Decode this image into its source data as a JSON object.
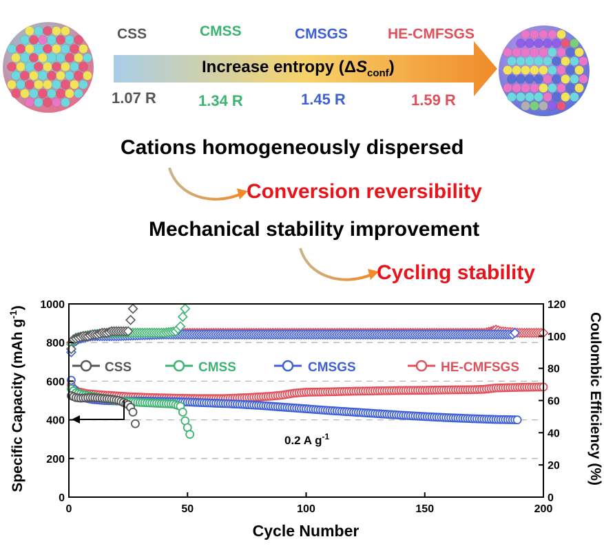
{
  "header": {
    "materials": [
      {
        "name": "CSS",
        "entropy": "1.07 R",
        "color": "#555555"
      },
      {
        "name": "CMSS",
        "entropy": "1.34 R",
        "color": "#3cb371"
      },
      {
        "name": "CMSGS",
        "entropy": "1.45 R",
        "color": "#3f5fd6"
      },
      {
        "name": "HE-CMFSGS",
        "entropy": "1.59 R",
        "color": "#e0505a"
      }
    ],
    "arrow_text": "Increase entropy (",
    "arrow_delta": "Δ",
    "arrow_s": "S",
    "arrow_sub": "conf",
    "arrow_close": ")",
    "arrow_colors": [
      "#a9cde8",
      "#f7d36a",
      "#f08a2a"
    ]
  },
  "statements": {
    "line1": "Cations homogeneously dispersed",
    "result1": "Conversion reversibility",
    "line2": "Mechanical stability improvement",
    "result2": "Cycling stability",
    "result_color": "#e8141c"
  },
  "chart_data": {
    "type": "scatter",
    "xlabel": "Cycle Number",
    "ylabel_left": "Specific Capacity (mAh g",
    "ylabel_left_sup": "-1",
    "ylabel_left_close": ")",
    "ylabel_right": "Coulombic Efficiency (%)",
    "xlim": [
      0,
      200
    ],
    "ylim_left": [
      0,
      1000
    ],
    "ylim_right": [
      0,
      120
    ],
    "xticks": [
      "0",
      "50",
      "100",
      "150",
      "200"
    ],
    "yticks_left": [
      "0",
      "200",
      "400",
      "600",
      "800",
      "1000"
    ],
    "yticks_right": [
      "0",
      "20",
      "40",
      "60",
      "80",
      "100",
      "120"
    ],
    "gridlines_left": [
      200,
      400,
      600,
      800
    ],
    "annotation": "0.2 A g",
    "annotation_sup": "-1",
    "legend": [
      "CSS",
      "CMSS",
      "CMSGS",
      "HE-CMFSGS"
    ],
    "series": [
      {
        "name": "CSS",
        "color": "#555555",
        "capacity": [
          [
            1,
            525
          ],
          [
            3,
            515
          ],
          [
            5,
            512
          ],
          [
            7,
            514
          ],
          [
            9,
            515
          ],
          [
            11,
            514
          ],
          [
            13,
            512
          ],
          [
            15,
            510
          ],
          [
            17,
            508
          ],
          [
            19,
            505
          ],
          [
            21,
            500
          ],
          [
            23,
            490
          ],
          [
            25,
            478
          ],
          [
            26,
            465
          ],
          [
            27,
            440
          ],
          [
            28,
            380
          ]
        ],
        "ce": [
          [
            1,
            92
          ],
          [
            2,
            98
          ],
          [
            4,
            99
          ],
          [
            6,
            100
          ],
          [
            8,
            100
          ],
          [
            10,
            101
          ],
          [
            12,
            101
          ],
          [
            14,
            102
          ],
          [
            16,
            102
          ],
          [
            18,
            103
          ],
          [
            20,
            103
          ],
          [
            22,
            103
          ],
          [
            24,
            103
          ],
          [
            25,
            103
          ],
          [
            26,
            110
          ],
          [
            27,
            117
          ]
        ]
      },
      {
        "name": "CMSS",
        "color": "#3cb371",
        "capacity": [
          [
            1,
            560
          ],
          [
            3,
            540
          ],
          [
            6,
            530
          ],
          [
            10,
            520
          ],
          [
            15,
            510
          ],
          [
            20,
            500
          ],
          [
            25,
            495
          ],
          [
            30,
            490
          ],
          [
            35,
            487
          ],
          [
            40,
            484
          ],
          [
            44,
            482
          ],
          [
            47,
            470
          ],
          [
            48,
            440
          ],
          [
            49,
            395
          ],
          [
            50,
            360
          ],
          [
            51,
            325
          ]
        ],
        "ce": [
          [
            1,
            95
          ],
          [
            3,
            99
          ],
          [
            6,
            100
          ],
          [
            10,
            101
          ],
          [
            15,
            102
          ],
          [
            20,
            102
          ],
          [
            25,
            102
          ],
          [
            30,
            102
          ],
          [
            35,
            102
          ],
          [
            40,
            102
          ],
          [
            45,
            103
          ],
          [
            47,
            106
          ],
          [
            48,
            112
          ],
          [
            49,
            117
          ]
        ]
      },
      {
        "name": "CMSGS",
        "color": "#3f5fd6",
        "capacity": [
          [
            1,
            605
          ],
          [
            2,
            560
          ],
          [
            4,
            530
          ],
          [
            6,
            515
          ],
          [
            10,
            505
          ],
          [
            15,
            500
          ],
          [
            20,
            498
          ],
          [
            30,
            497
          ],
          [
            40,
            495
          ],
          [
            50,
            492
          ],
          [
            60,
            487
          ],
          [
            70,
            482
          ],
          [
            80,
            475
          ],
          [
            90,
            466
          ],
          [
            100,
            457
          ],
          [
            110,
            448
          ],
          [
            120,
            440
          ],
          [
            130,
            432
          ],
          [
            140,
            424
          ],
          [
            150,
            417
          ],
          [
            160,
            411
          ],
          [
            170,
            406
          ],
          [
            180,
            402
          ],
          [
            189,
            400
          ]
        ],
        "ce": [
          [
            1,
            90
          ],
          [
            2,
            96
          ],
          [
            4,
            98
          ],
          [
            6,
            99
          ],
          [
            10,
            100
          ],
          [
            20,
            100
          ],
          [
            40,
            101
          ],
          [
            60,
            101
          ],
          [
            80,
            101
          ],
          [
            100,
            101
          ],
          [
            120,
            101
          ],
          [
            140,
            101
          ],
          [
            160,
            101
          ],
          [
            180,
            101
          ],
          [
            187,
            101
          ],
          [
            188,
            102
          ]
        ]
      },
      {
        "name": "HE-CMFSGS",
        "color": "#e0505a",
        "capacity": [
          [
            1,
            580
          ],
          [
            2,
            560
          ],
          [
            4,
            545
          ],
          [
            8,
            535
          ],
          [
            15,
            528
          ],
          [
            25,
            520
          ],
          [
            35,
            515
          ],
          [
            45,
            512
          ],
          [
            55,
            510
          ],
          [
            65,
            510
          ],
          [
            75,
            515
          ],
          [
            85,
            522
          ],
          [
            90,
            528
          ],
          [
            95,
            538
          ],
          [
            100,
            543
          ],
          [
            110,
            545
          ],
          [
            120,
            548
          ],
          [
            130,
            550
          ],
          [
            140,
            552
          ],
          [
            150,
            553
          ],
          [
            160,
            555
          ],
          [
            170,
            556
          ],
          [
            175,
            558
          ],
          [
            180,
            565
          ],
          [
            190,
            568
          ],
          [
            200,
            570
          ]
        ],
        "ce": [
          [
            1,
            96
          ],
          [
            3,
            99
          ],
          [
            6,
            100
          ],
          [
            10,
            101
          ],
          [
            20,
            102
          ],
          [
            40,
            102
          ],
          [
            60,
            102
          ],
          [
            80,
            102
          ],
          [
            100,
            102
          ],
          [
            120,
            102
          ],
          [
            140,
            102
          ],
          [
            160,
            102
          ],
          [
            175,
            102
          ],
          [
            178,
            103
          ],
          [
            180,
            104
          ],
          [
            182,
            103
          ],
          [
            190,
            102
          ],
          [
            200,
            102
          ]
        ]
      }
    ]
  }
}
